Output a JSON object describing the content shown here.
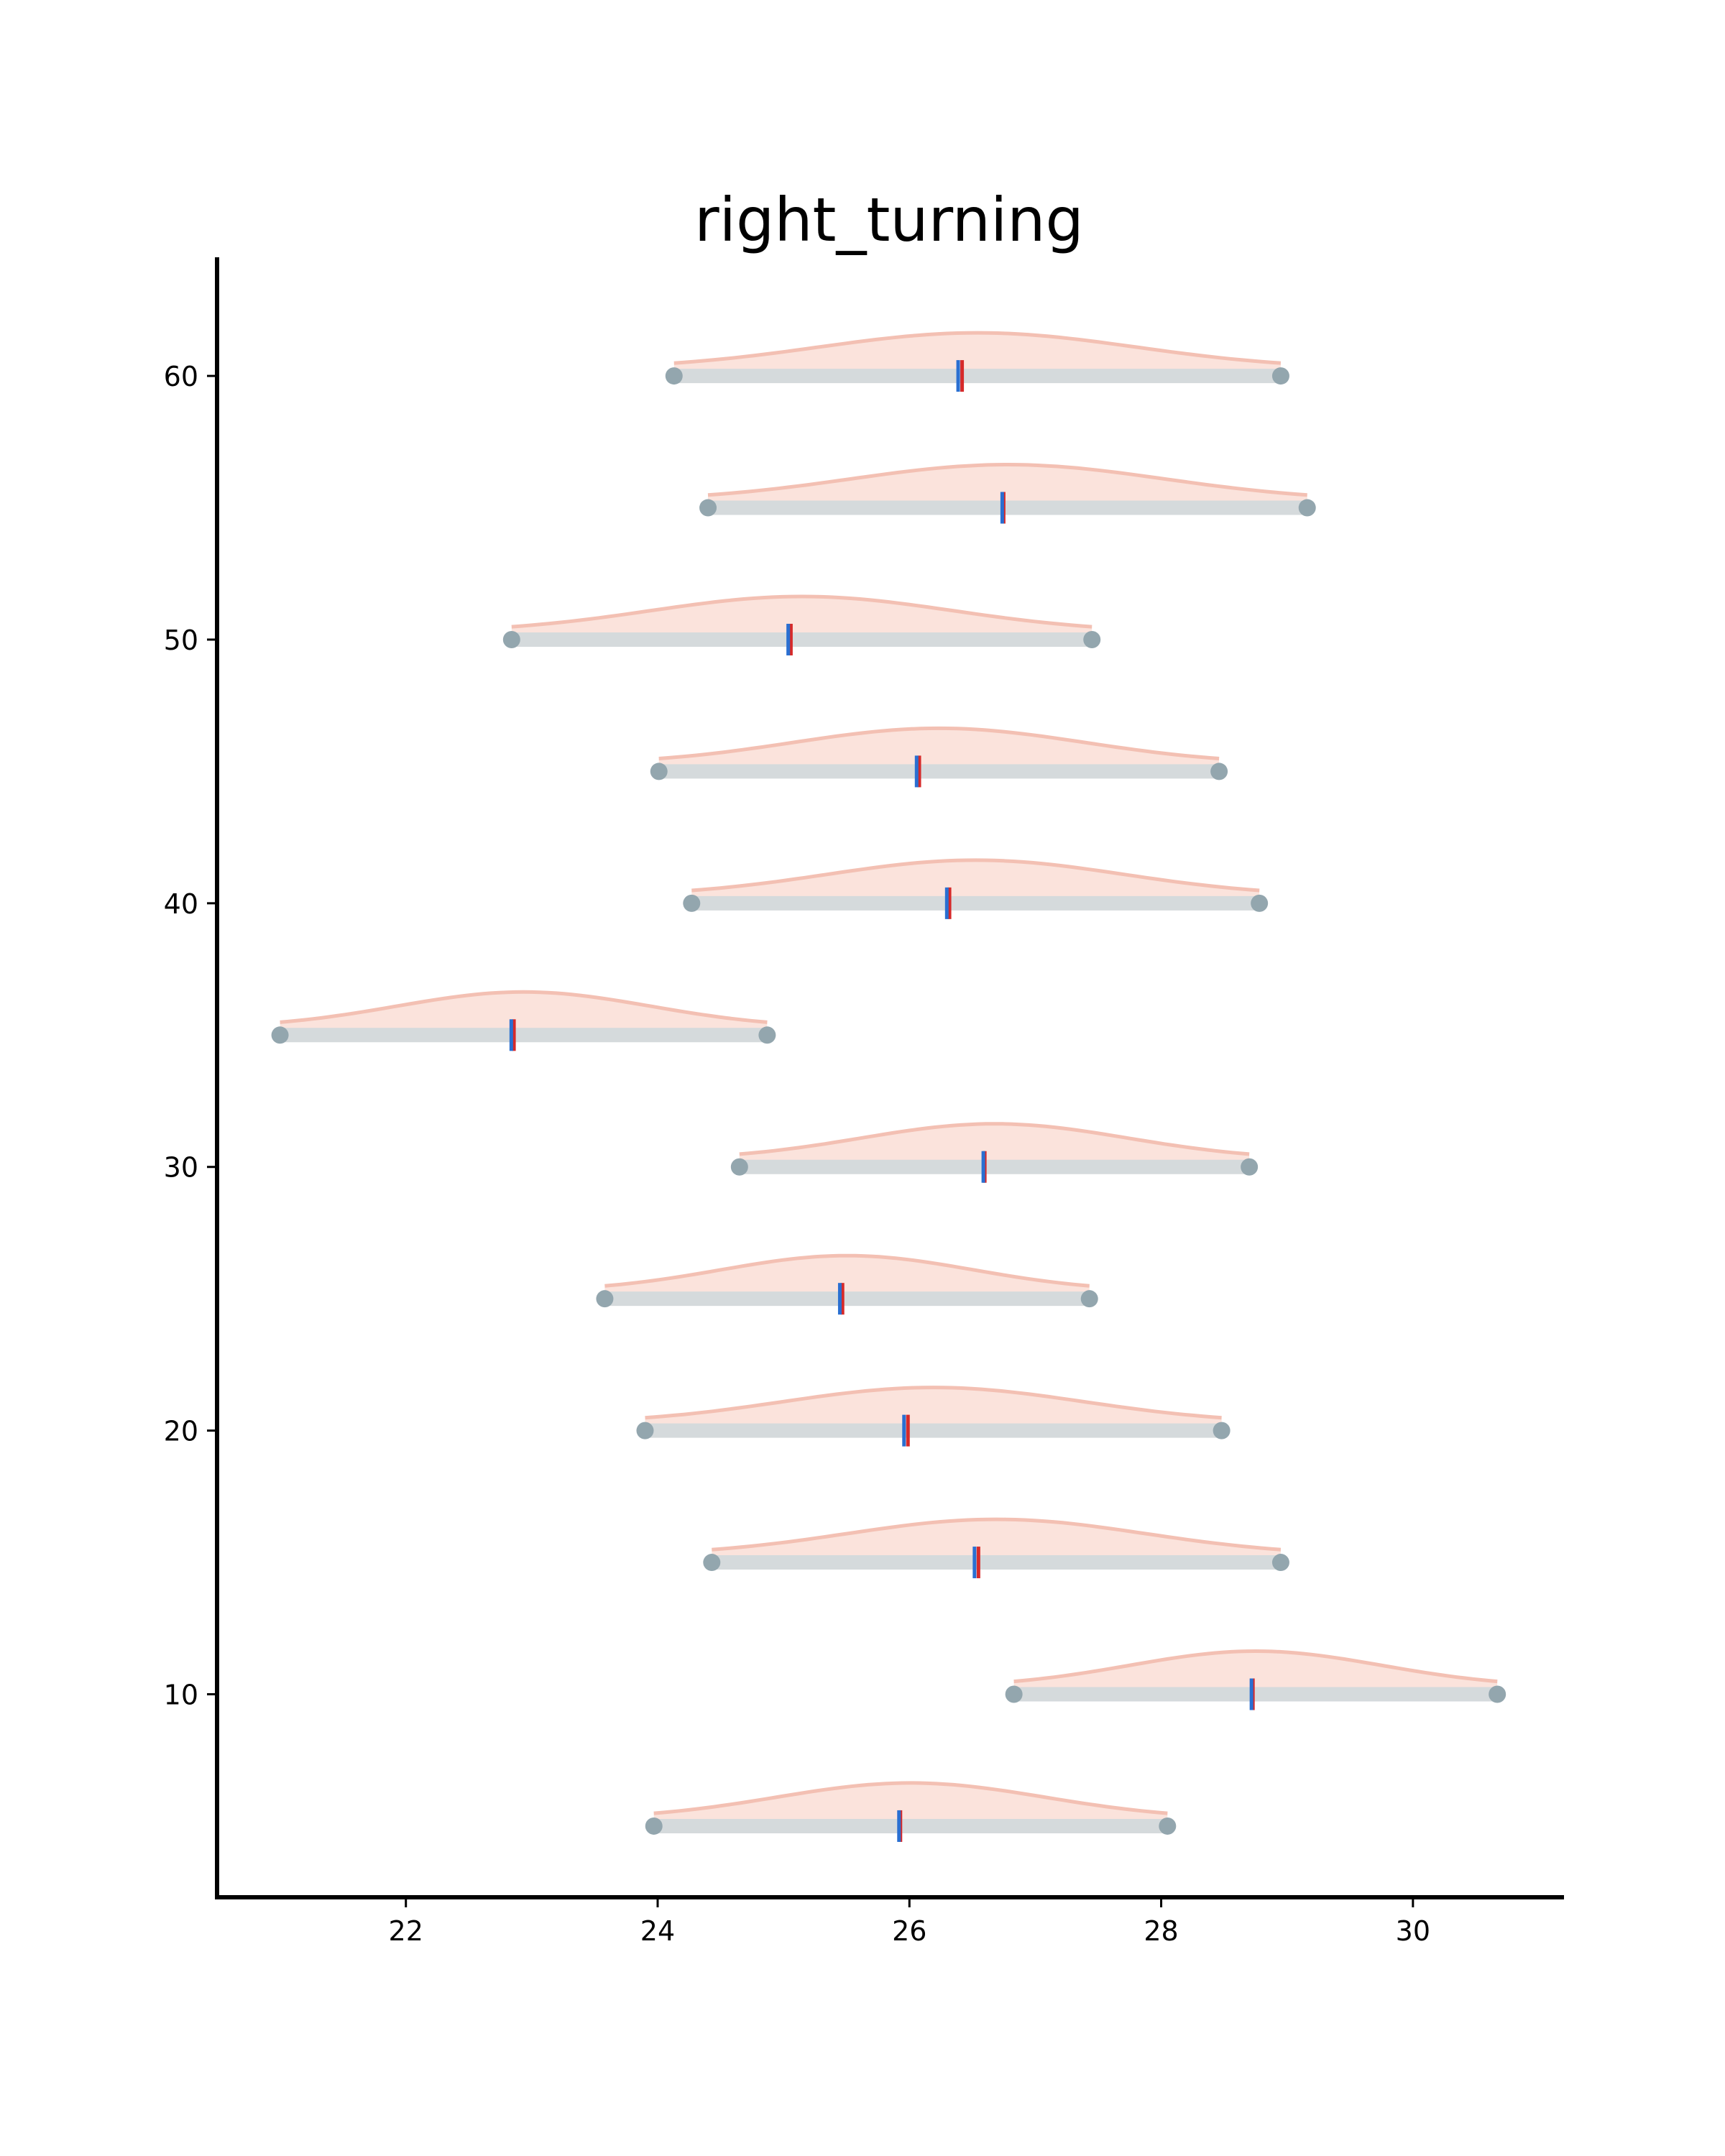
{
  "chart_data": {
    "type": "interval-density",
    "title": "right_turning",
    "xlabel": "",
    "ylabel": "",
    "xlim": [
      20.5,
      31.2
    ],
    "ylim": [
      2.3,
      64.5
    ],
    "x_ticks": [
      22,
      24,
      26,
      28,
      30
    ],
    "y_ticks": [
      10,
      20,
      30,
      40,
      50,
      60
    ],
    "grid": false,
    "series": [
      {
        "y": 5,
        "low": 23.97,
        "high": 28.05,
        "point_blue": 25.92,
        "point_red": 25.92
      },
      {
        "y": 10,
        "low": 26.83,
        "high": 30.67,
        "point_blue": 28.72,
        "point_red": 28.72
      },
      {
        "y": 15,
        "low": 24.43,
        "high": 28.95,
        "point_blue": 26.52,
        "point_red": 26.54
      },
      {
        "y": 20,
        "low": 23.9,
        "high": 28.48,
        "point_blue": 25.96,
        "point_red": 25.98
      },
      {
        "y": 25,
        "low": 23.58,
        "high": 27.43,
        "point_blue": 25.45,
        "point_red": 25.46
      },
      {
        "y": 30,
        "low": 24.65,
        "high": 28.7,
        "point_blue": 26.59,
        "point_red": 26.59
      },
      {
        "y": 35,
        "low": 21.0,
        "high": 24.87,
        "point_blue": 22.84,
        "point_red": 22.85
      },
      {
        "y": 40,
        "low": 24.27,
        "high": 28.78,
        "point_blue": 26.3,
        "point_red": 26.31
      },
      {
        "y": 45,
        "low": 24.01,
        "high": 28.46,
        "point_blue": 26.06,
        "point_red": 26.07
      },
      {
        "y": 50,
        "low": 22.84,
        "high": 27.45,
        "point_blue": 25.04,
        "point_red": 25.05
      },
      {
        "y": 55,
        "low": 24.4,
        "high": 29.16,
        "point_blue": 26.74,
        "point_red": 26.74
      },
      {
        "y": 60,
        "low": 24.13,
        "high": 28.95,
        "point_blue": 26.39,
        "point_red": 26.41
      }
    ],
    "colors": {
      "density_fill": "#fbe3dc",
      "density_edge": "#f3c0b3",
      "interval": "#d5dadc",
      "endpoint": "#93a6ae",
      "point_blue": "#2a6fd1",
      "point_red": "#d62a2a",
      "axis": "#000000"
    }
  }
}
